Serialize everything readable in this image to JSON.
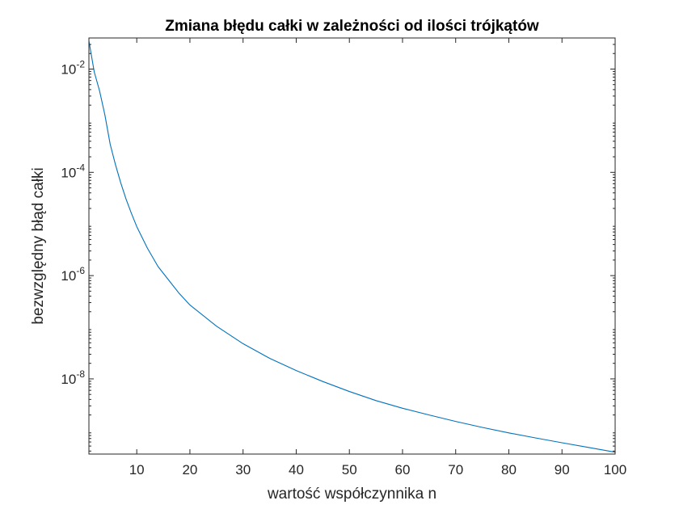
{
  "chart_data": {
    "type": "line",
    "title": "Zmiana błędu całki w zależności od ilości trójkątów",
    "xlabel": "wartość współczynnika n",
    "ylabel": "bezwzględny błąd całki",
    "xlim": [
      1,
      100
    ],
    "ylim": [
      3.5e-10,
      0.04
    ],
    "yscale": "log",
    "grid": false,
    "x_ticks": [
      10,
      20,
      30,
      40,
      50,
      60,
      70,
      80,
      90,
      100
    ],
    "x_tick_labels": [
      "10",
      "20",
      "30",
      "40",
      "50",
      "60",
      "70",
      "80",
      "90",
      "100"
    ],
    "y_ticks": [
      1e-08,
      1e-06,
      0.0001,
      0.01
    ],
    "y_tick_labels": [
      {
        "base": "10",
        "exp": "-8"
      },
      {
        "base": "10",
        "exp": "-6"
      },
      {
        "base": "10",
        "exp": "-4"
      },
      {
        "base": "10",
        "exp": "-2"
      }
    ],
    "series": [
      {
        "color": "#0072BD",
        "x": [
          1,
          2,
          3,
          4,
          5,
          6,
          7,
          8,
          9,
          10,
          12,
          14,
          16,
          18,
          20,
          25,
          30,
          35,
          40,
          45,
          50,
          55,
          60,
          65,
          70,
          75,
          80,
          85,
          90,
          95,
          100
        ],
        "y": [
          0.035,
          0.0088,
          0.0038,
          0.0013,
          0.00035,
          0.00014,
          6.2e-05,
          3e-05,
          1.6e-05,
          8.9e-06,
          3.4e-06,
          1.5e-06,
          8.2e-07,
          4.5e-07,
          2.7e-07,
          1.05e-07,
          4.8e-08,
          2.5e-08,
          1.45e-08,
          8.9e-09,
          5.7e-09,
          3.8e-09,
          2.7e-09,
          2e-09,
          1.5e-09,
          1.15e-09,
          9e-10,
          7.2e-10,
          5.8e-10,
          4.7e-10,
          3.8e-10
        ]
      }
    ]
  }
}
